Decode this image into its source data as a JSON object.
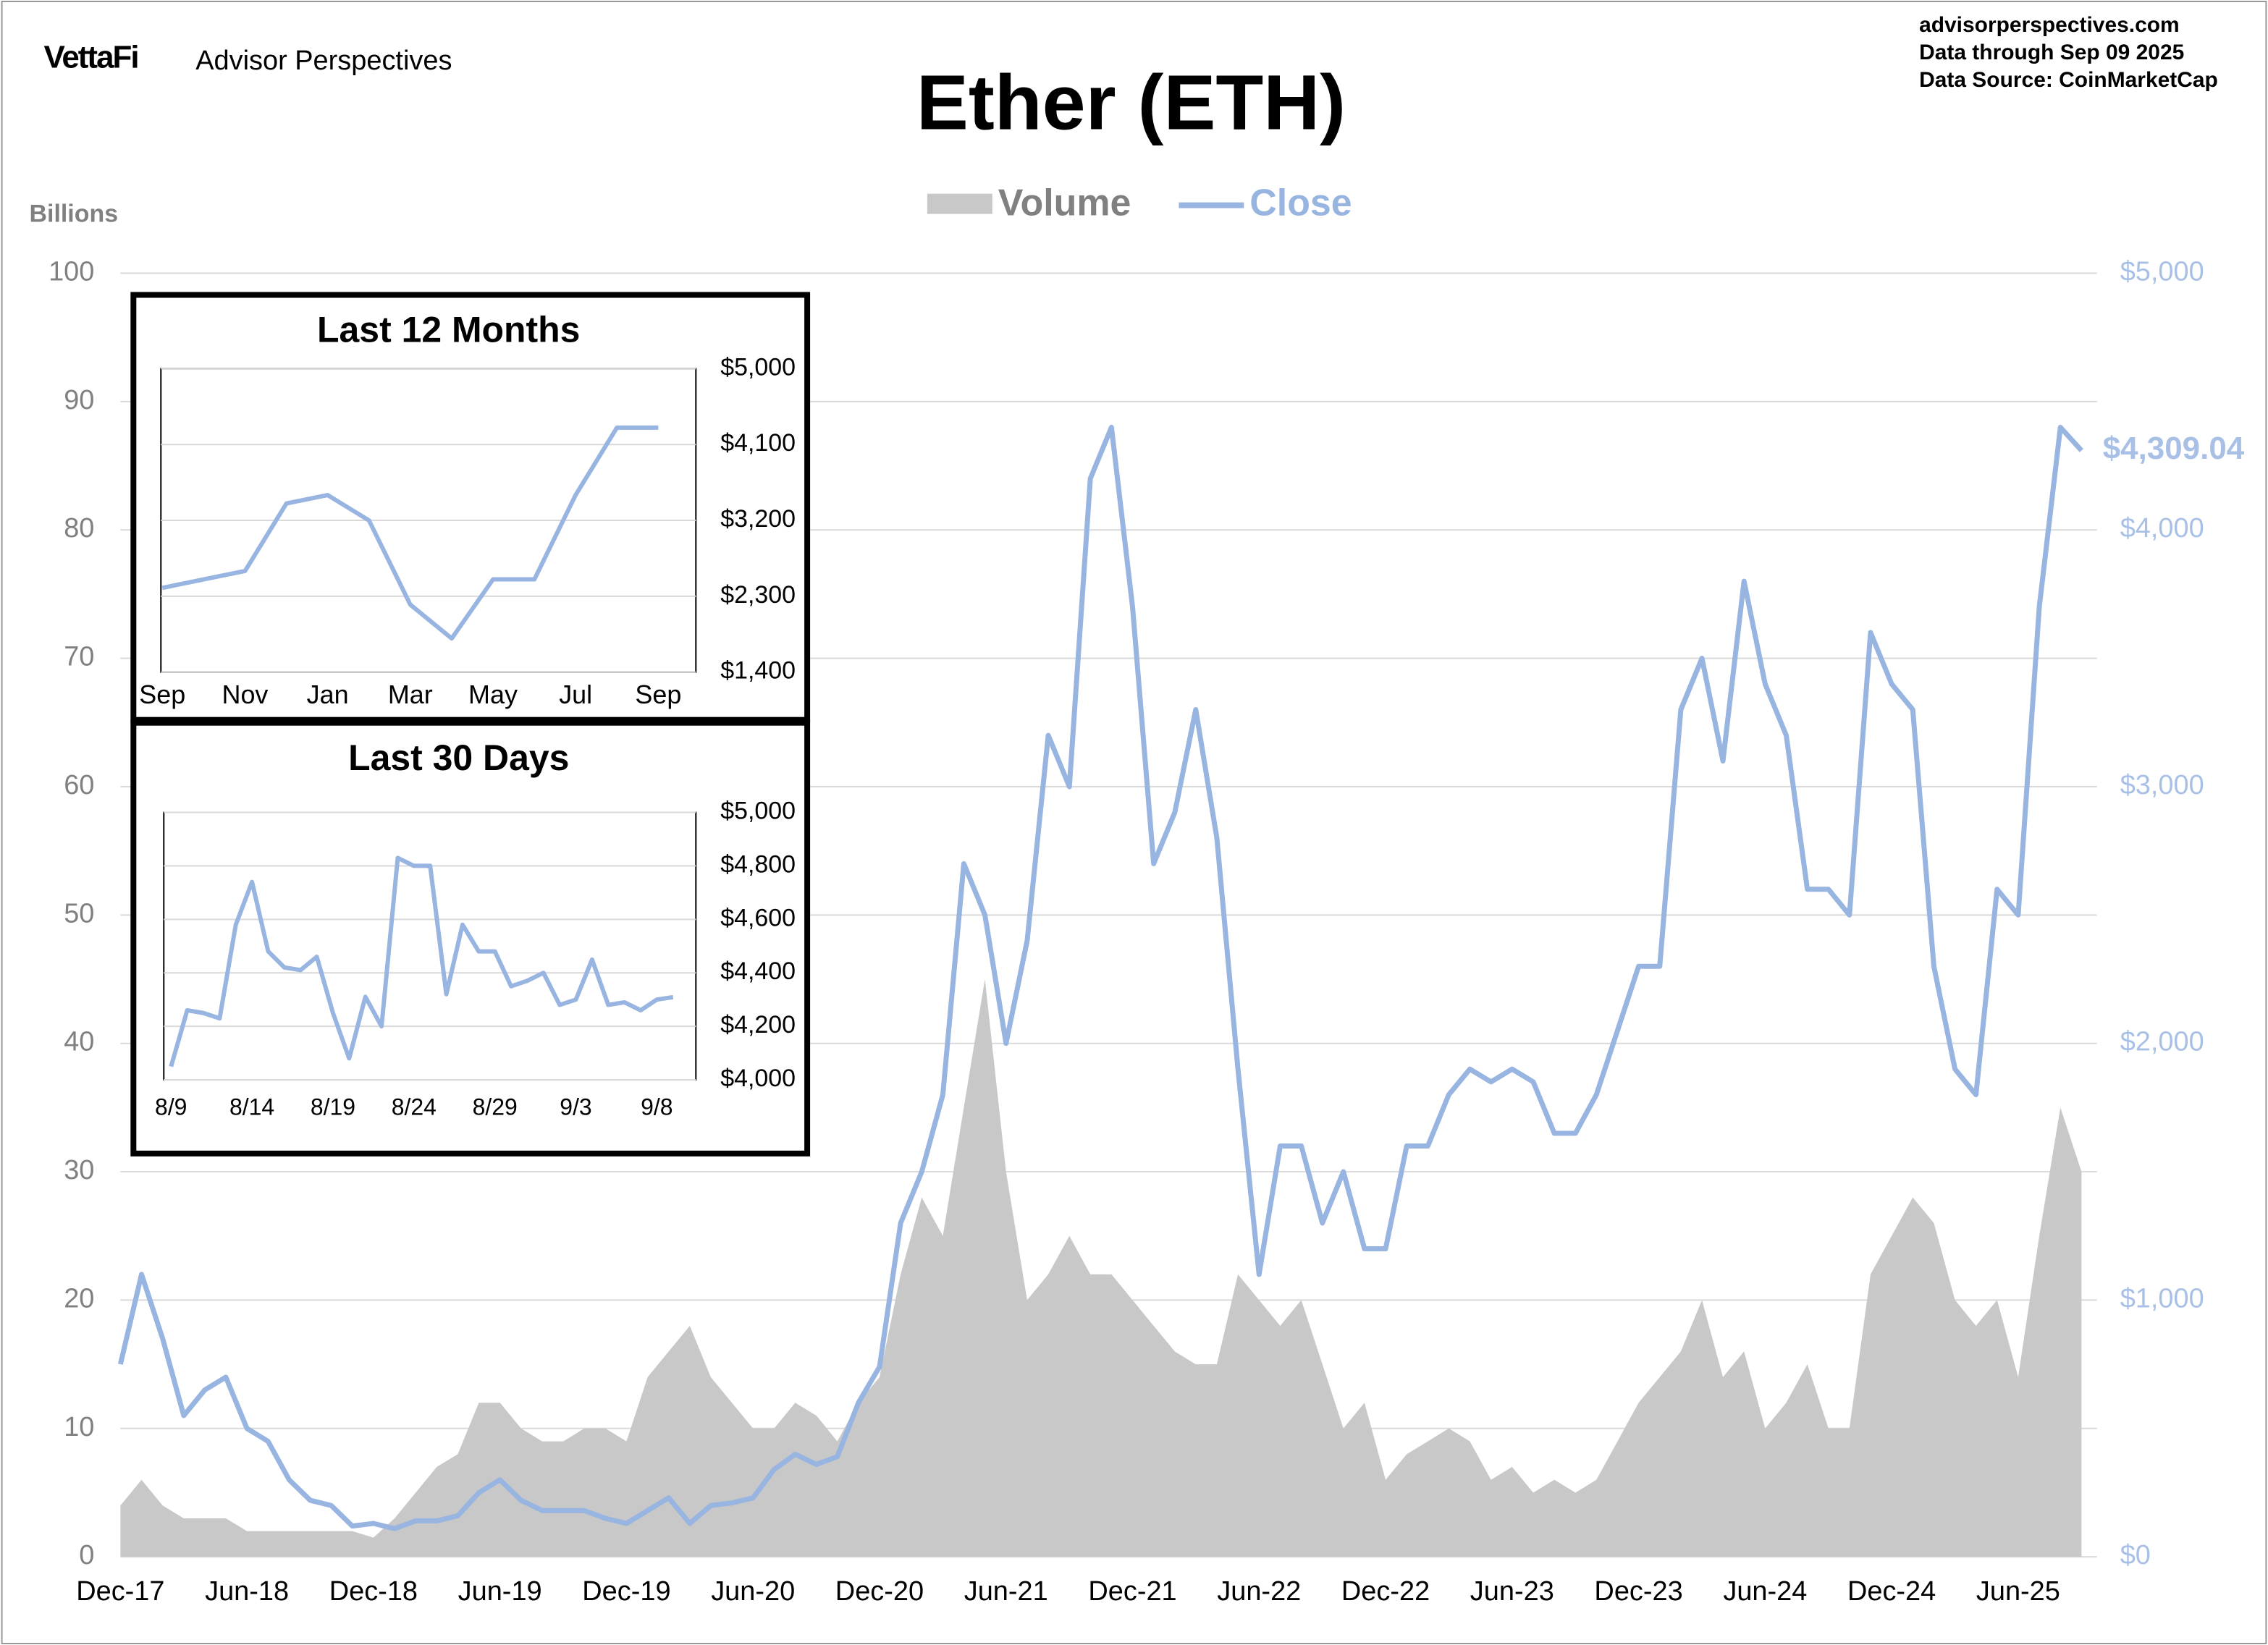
{
  "header": {
    "brand": "VettaFi",
    "brand_sub": "Advisor Perspectives",
    "site": "advisorperspectives.com",
    "data_through": "Data through  Sep 09 2025",
    "data_source": "Data Source:  CoinMarketCap"
  },
  "chart_data": [
    {
      "type": "combo",
      "title": "Ether (ETH)",
      "y_label": "Billions",
      "legend": "top",
      "grid": true,
      "x": [
        "2017-12",
        "2018-01",
        "2018-02",
        "2018-03",
        "2018-04",
        "2018-05",
        "2018-06",
        "2018-07",
        "2018-08",
        "2018-09",
        "2018-10",
        "2018-11",
        "2018-12",
        "2019-01",
        "2019-02",
        "2019-03",
        "2019-04",
        "2019-05",
        "2019-06",
        "2019-07",
        "2019-08",
        "2019-09",
        "2019-10",
        "2019-11",
        "2019-12",
        "2020-01",
        "2020-02",
        "2020-03",
        "2020-04",
        "2020-05",
        "2020-06",
        "2020-07",
        "2020-08",
        "2020-09",
        "2020-10",
        "2020-11",
        "2020-12",
        "2021-01",
        "2021-02",
        "2021-03",
        "2021-04",
        "2021-05",
        "2021-06",
        "2021-07",
        "2021-08",
        "2021-09",
        "2021-10",
        "2021-11",
        "2021-12",
        "2022-01",
        "2022-02",
        "2022-03",
        "2022-04",
        "2022-05",
        "2022-06",
        "2022-07",
        "2022-08",
        "2022-09",
        "2022-10",
        "2022-11",
        "2022-12",
        "2023-01",
        "2023-02",
        "2023-03",
        "2023-04",
        "2023-05",
        "2023-06",
        "2023-07",
        "2023-08",
        "2023-09",
        "2023-10",
        "2023-11",
        "2023-12",
        "2024-01",
        "2024-02",
        "2024-03",
        "2024-04",
        "2024-05",
        "2024-06",
        "2024-07",
        "2024-08",
        "2024-09",
        "2024-10",
        "2024-11",
        "2024-12",
        "2025-01",
        "2025-02",
        "2025-03",
        "2025-04",
        "2025-05",
        "2025-06",
        "2025-07",
        "2025-08",
        "2025-09"
      ],
      "xlim": [
        "2017-12",
        "2025-09"
      ],
      "xticks": [
        {
          "value": "2017-12",
          "label": "Dec-17"
        },
        {
          "value": "2018-06",
          "label": "Jun-18"
        },
        {
          "value": "2018-12",
          "label": "Dec-18"
        },
        {
          "value": "2019-06",
          "label": "Jun-19"
        },
        {
          "value": "2019-12",
          "label": "Dec-19"
        },
        {
          "value": "2020-06",
          "label": "Jun-20"
        },
        {
          "value": "2020-12",
          "label": "Dec-20"
        },
        {
          "value": "2021-06",
          "label": "Jun-21"
        },
        {
          "value": "2021-12",
          "label": "Dec-21"
        },
        {
          "value": "2022-06",
          "label": "Jun-22"
        },
        {
          "value": "2022-12",
          "label": "Dec-22"
        },
        {
          "value": "2023-06",
          "label": "Jun-23"
        },
        {
          "value": "2023-12",
          "label": "Dec-23"
        },
        {
          "value": "2024-06",
          "label": "Jun-24"
        },
        {
          "value": "2024-12",
          "label": "Dec-24"
        },
        {
          "value": "2025-06",
          "label": "Jun-25"
        }
      ],
      "ylim": [
        0,
        100
      ],
      "yticks": [
        0,
        10,
        20,
        30,
        40,
        50,
        60,
        70,
        80,
        90,
        100
      ],
      "y2lim": [
        0,
        5000
      ],
      "y2ticks": [
        {
          "value": 0,
          "label": "$0"
        },
        {
          "value": 1000,
          "label": "$1,000"
        },
        {
          "value": 2000,
          "label": "$2,000"
        },
        {
          "value": 3000,
          "label": "$3,000"
        },
        {
          "value": 4000,
          "label": "$4,000"
        },
        {
          "value": 5000,
          "label": "$5,000"
        }
      ],
      "series": [
        {
          "name": "Volume",
          "type": "area",
          "color": "#c8c8c8",
          "values": [
            4,
            6,
            4,
            3,
            3,
            3,
            2,
            2,
            2,
            2,
            2,
            2,
            1.5,
            3,
            5,
            7,
            8,
            12,
            12,
            10,
            9,
            9,
            10,
            10,
            9,
            14,
            16,
            18,
            14,
            12,
            10,
            10,
            12,
            11,
            9,
            12,
            14,
            22,
            28,
            25,
            35,
            45,
            30,
            20,
            22,
            25,
            22,
            22,
            20,
            18,
            16,
            15,
            15,
            22,
            20,
            18,
            20,
            15,
            10,
            12,
            6,
            8,
            9,
            10,
            9,
            6,
            7,
            5,
            6,
            5,
            6,
            9,
            12,
            14,
            16,
            20,
            14,
            16,
            10,
            12,
            15,
            10,
            10,
            22,
            25,
            28,
            26,
            20,
            18,
            20,
            14,
            25,
            35,
            30
          ]
        },
        {
          "name": "Close",
          "type": "line",
          "color": "#98b4e0",
          "axis": "y2",
          "values": [
            750,
            1100,
            850,
            550,
            650,
            700,
            500,
            450,
            300,
            220,
            200,
            120,
            130,
            110,
            140,
            140,
            160,
            250,
            300,
            220,
            180,
            180,
            180,
            150,
            130,
            180,
            230,
            130,
            200,
            210,
            230,
            340,
            400,
            360,
            390,
            600,
            740,
            1300,
            1500,
            1800,
            2700,
            2500,
            2000,
            2400,
            3200,
            3000,
            4200,
            4400,
            3700,
            2700,
            2900,
            3300,
            2800,
            1900,
            1100,
            1600,
            1600,
            1300,
            1500,
            1200,
            1200,
            1600,
            1600,
            1800,
            1900,
            1850,
            1900,
            1850,
            1650,
            1650,
            1800,
            2050,
            2300,
            2300,
            3300,
            3500,
            3100,
            3800,
            3400,
            3200,
            2600,
            2600,
            2500,
            3600,
            3400,
            3300,
            2300,
            1900,
            1800,
            2600,
            2500,
            3700,
            4400,
            4309.04
          ]
        }
      ],
      "annotations": [
        {
          "text": "$4,309.04",
          "value": 4309.04
        }
      ]
    },
    {
      "type": "line",
      "title": "Last 12 Months",
      "color": "#98b4e0",
      "categories": [
        "Sep",
        null,
        "Nov",
        null,
        "Jan",
        null,
        "Mar",
        null,
        "May",
        null,
        "Jul",
        null,
        "Sep"
      ],
      "values": [
        2400,
        2500,
        2600,
        3400,
        3500,
        3200,
        2200,
        1800,
        2500,
        2500,
        3500,
        4300,
        4300
      ],
      "ylim": [
        1400,
        5000
      ],
      "yticks": [
        {
          "value": 1400,
          "label": "$1,400"
        },
        {
          "value": 2300,
          "label": "$2,300"
        },
        {
          "value": 3200,
          "label": "$3,200"
        },
        {
          "value": 4100,
          "label": "$4,100"
        },
        {
          "value": 5000,
          "label": "$5,000"
        }
      ],
      "grid": true
    },
    {
      "type": "line",
      "title": "Last 30 Days",
      "color": "#98b4e0",
      "categories": [
        "8/9",
        null,
        null,
        null,
        null,
        "8/14",
        null,
        null,
        null,
        null,
        "8/19",
        null,
        null,
        null,
        null,
        "8/24",
        null,
        null,
        null,
        null,
        "8/29",
        null,
        null,
        null,
        null,
        "9/3",
        null,
        null,
        null,
        null,
        "9/8",
        null
      ],
      "values": [
        4050,
        4260,
        4250,
        4230,
        4580,
        4740,
        4480,
        4420,
        4410,
        4460,
        4250,
        4080,
        4310,
        4200,
        4830,
        4800,
        4800,
        4320,
        4580,
        4480,
        4480,
        4350,
        4370,
        4400,
        4280,
        4300,
        4450,
        4280,
        4290,
        4260,
        4300,
        4309.04
      ],
      "ylim": [
        4000,
        5000
      ],
      "yticks": [
        {
          "value": 4000,
          "label": "$4,000"
        },
        {
          "value": 4200,
          "label": "$4,200"
        },
        {
          "value": 4400,
          "label": "$4,400"
        },
        {
          "value": 4600,
          "label": "$4,600"
        },
        {
          "value": 4800,
          "label": "$4,800"
        },
        {
          "value": 5000,
          "label": "$5,000"
        }
      ],
      "grid": true
    }
  ]
}
